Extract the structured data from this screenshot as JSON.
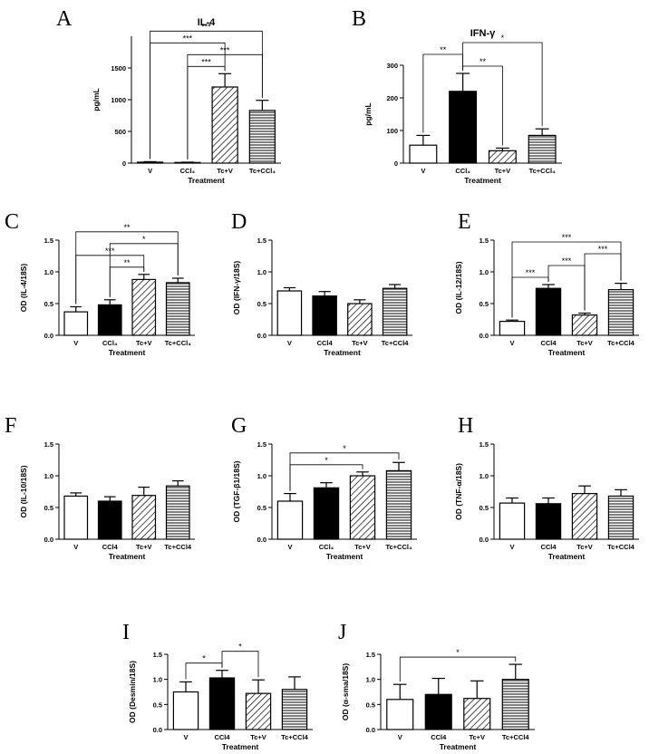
{
  "chart_data": [
    {
      "type": "bar",
      "panel": "A",
      "title": "IL-4",
      "ylabel": "pg/mL",
      "xlabel": "Treatment",
      "categories": [
        "V",
        "CCl₄",
        "Tc+V",
        "Tc+CCl₄"
      ],
      "values": [
        15,
        10,
        1200,
        830
      ],
      "errors": [
        8,
        5,
        210,
        160
      ],
      "fills": [
        "#ffffff",
        "#000000",
        "hatch",
        "stripes"
      ],
      "ylim": [
        0,
        2000
      ],
      "yticks": [
        0,
        500,
        1000,
        1500
      ],
      "significance": [
        {
          "pair": [
            "CCl₄",
            "Tc+V"
          ],
          "label": "***"
        },
        {
          "pair": [
            "CCl₄",
            "Tc+CCl₄"
          ],
          "label": "***"
        },
        {
          "pair": [
            "V",
            "Tc+V"
          ],
          "label": "***"
        },
        {
          "pair": [
            "V",
            "Tc+CCl₄"
          ],
          "label": "***"
        }
      ]
    },
    {
      "type": "bar",
      "panel": "B",
      "title": "IFN-γ",
      "ylabel": "pg/mL",
      "xlabel": "Treatment",
      "categories": [
        "V",
        "CCl₄",
        "Tc+V",
        "Tc+CCl₄"
      ],
      "values": [
        55,
        220,
        38,
        85
      ],
      "errors": [
        30,
        55,
        8,
        20
      ],
      "fills": [
        "#ffffff",
        "#000000",
        "hatch",
        "stripes"
      ],
      "ylim": [
        0,
        300
      ],
      "yticks": [
        0,
        100,
        200,
        300
      ],
      "significance": [
        {
          "pair": [
            "CCl₄",
            "Tc+V"
          ],
          "label": "**"
        },
        {
          "pair": [
            "V",
            "CCl₄"
          ],
          "label": "**"
        },
        {
          "pair": [
            "CCl₄",
            "Tc+CCl₄"
          ],
          "label": "*"
        }
      ]
    },
    {
      "type": "bar",
      "panel": "C",
      "ylabel": "OD (IL-4/18S)",
      "xlabel": "Treatment",
      "categories": [
        "V",
        "CCl₄",
        "Tc+V",
        "Tc+CCl₄"
      ],
      "values": [
        0.37,
        0.48,
        0.88,
        0.83
      ],
      "errors": [
        0.08,
        0.08,
        0.08,
        0.07
      ],
      "fills": [
        "#ffffff",
        "#000000",
        "hatch",
        "stripes"
      ],
      "ylim": [
        0,
        1.5
      ],
      "yticks": [
        {
          "value": 0,
          "label": "0.0"
        },
        0.5,
        {
          "value": 1,
          "label": "1.0"
        },
        1.5
      ],
      "significance": [
        {
          "pair": [
            "CCl₄",
            "Tc+V"
          ],
          "label": "**"
        },
        {
          "pair": [
            "V",
            "Tc+V"
          ],
          "label": "***"
        },
        {
          "pair": [
            "CCl₄",
            "Tc+CCl₄"
          ],
          "label": "*"
        },
        {
          "pair": [
            "V",
            "Tc+CCl₄"
          ],
          "label": "**"
        }
      ]
    },
    {
      "type": "bar",
      "panel": "D",
      "ylabel": "OD (IFN-γ/18S)",
      "xlabel": "Treatment",
      "categories": [
        "V",
        "CCl4",
        "Tc+V",
        "Tc+CCl4"
      ],
      "values": [
        0.7,
        0.62,
        0.5,
        0.74
      ],
      "errors": [
        0.05,
        0.07,
        0.06,
        0.06
      ],
      "fills": [
        "#ffffff",
        "#000000",
        "hatch",
        "stripes"
      ],
      "ylim": [
        0,
        1.5
      ],
      "yticks": [
        {
          "value": 0,
          "label": "0.0"
        },
        0.5,
        {
          "value": 1,
          "label": "1.0"
        },
        1.5
      ],
      "significance": []
    },
    {
      "type": "bar",
      "panel": "E",
      "ylabel": "OD (IL-12/18S)",
      "xlabel": "Treatment",
      "categories": [
        "V",
        "CCl4",
        "Tc+V",
        "Tc+CCl4"
      ],
      "values": [
        0.22,
        0.74,
        0.32,
        0.72
      ],
      "errors": [
        0.02,
        0.06,
        0.03,
        0.1
      ],
      "fills": [
        "#ffffff",
        "#000000",
        "hatch",
        "stripes"
      ],
      "ylim": [
        0,
        1.5
      ],
      "yticks": [
        {
          "value": 0,
          "label": "0.0"
        },
        0.5,
        {
          "value": 1,
          "label": "1.0"
        },
        1.5
      ],
      "significance": [
        {
          "pair": [
            "V",
            "CCl4"
          ],
          "label": "***"
        },
        {
          "pair": [
            "CCl4",
            "Tc+V"
          ],
          "label": "***"
        },
        {
          "pair": [
            "Tc+V",
            "Tc+CCl4"
          ],
          "label": "***"
        },
        {
          "pair": [
            "V",
            "Tc+CCl4"
          ],
          "label": "***"
        }
      ]
    },
    {
      "type": "bar",
      "panel": "F",
      "ylabel": "OD (IL-10/18S)",
      "xlabel": "Treatment",
      "categories": [
        "V",
        "CCl4",
        "Tc+V",
        "Tc+CCl4"
      ],
      "values": [
        0.68,
        0.6,
        0.69,
        0.84
      ],
      "errors": [
        0.05,
        0.07,
        0.13,
        0.08
      ],
      "fills": [
        "#ffffff",
        "#000000",
        "hatch",
        "stripes"
      ],
      "ylim": [
        0,
        1.5
      ],
      "yticks": [
        {
          "value": 0,
          "label": "0.0"
        },
        0.5,
        {
          "value": 1,
          "label": "1.0"
        },
        1.5
      ],
      "significance": []
    },
    {
      "type": "bar",
      "panel": "G",
      "ylabel": "OD (TGF-β1/18S)",
      "xlabel": "Treatment",
      "categories": [
        "V",
        "CCl₄",
        "Tc+V",
        "Tc+CCl₄"
      ],
      "values": [
        0.6,
        0.81,
        1.0,
        1.08
      ],
      "errors": [
        0.12,
        0.08,
        0.06,
        0.13
      ],
      "fills": [
        "#ffffff",
        "#000000",
        "hatch",
        "stripes"
      ],
      "ylim": [
        0,
        1.5
      ],
      "yticks": [
        {
          "value": 0,
          "label": "0.0"
        },
        0.5,
        {
          "value": 1,
          "label": "1.0"
        },
        1.5
      ],
      "significance": [
        {
          "pair": [
            "V",
            "Tc+V"
          ],
          "label": "*"
        },
        {
          "pair": [
            "V",
            "Tc+CCl₄"
          ],
          "label": "*"
        }
      ]
    },
    {
      "type": "bar",
      "panel": "H",
      "ylabel": "OD (TNF-α/18S)",
      "xlabel": "Treatment",
      "categories": [
        "V",
        "CCl4",
        "Tc+V",
        "Tc+CCl4"
      ],
      "values": [
        0.57,
        0.56,
        0.72,
        0.68
      ],
      "errors": [
        0.08,
        0.09,
        0.12,
        0.1
      ],
      "fills": [
        "#ffffff",
        "#000000",
        "hatch",
        "stripes"
      ],
      "ylim": [
        0,
        1.5
      ],
      "yticks": [
        {
          "value": 0,
          "label": "0.0"
        },
        0.5,
        {
          "value": 1,
          "label": "1.0"
        },
        1.5
      ],
      "significance": []
    },
    {
      "type": "bar",
      "panel": "I",
      "ylabel": "OD (Desmin/18S)",
      "xlabel": "Treatment",
      "categories": [
        "V",
        "CCl4",
        "Tc+V",
        "Tc+CCl4"
      ],
      "values": [
        0.75,
        1.03,
        0.72,
        0.8
      ],
      "errors": [
        0.2,
        0.15,
        0.27,
        0.25
      ],
      "fills": [
        "#ffffff",
        "#000000",
        "hatch",
        "stripes"
      ],
      "ylim": [
        0,
        1.5
      ],
      "yticks": [
        {
          "value": 0,
          "label": "0.0"
        },
        0.5,
        {
          "value": 1,
          "label": "1.0"
        },
        1.5
      ],
      "significance": [
        {
          "pair": [
            "V",
            "CCl4"
          ],
          "label": "*"
        },
        {
          "pair": [
            "CCl4",
            "Tc+V"
          ],
          "label": "*"
        }
      ]
    },
    {
      "type": "bar",
      "panel": "J",
      "ylabel": "OD (α-sma/18S)",
      "xlabel": "Treatment",
      "categories": [
        "V",
        "CCl4",
        "Tc+V",
        "Tc+CCl4"
      ],
      "values": [
        0.6,
        0.7,
        0.62,
        1.0
      ],
      "errors": [
        0.3,
        0.32,
        0.35,
        0.3
      ],
      "fills": [
        "#ffffff",
        "#000000",
        "hatch",
        "stripes"
      ],
      "ylim": [
        0,
        1.5
      ],
      "yticks": [
        {
          "value": 0,
          "label": "0.0"
        },
        0.5,
        {
          "value": 1,
          "label": "1.0"
        },
        1.5
      ],
      "significance": [
        {
          "pair": [
            "V",
            "Tc+CCl4"
          ],
          "label": "*"
        }
      ]
    }
  ]
}
